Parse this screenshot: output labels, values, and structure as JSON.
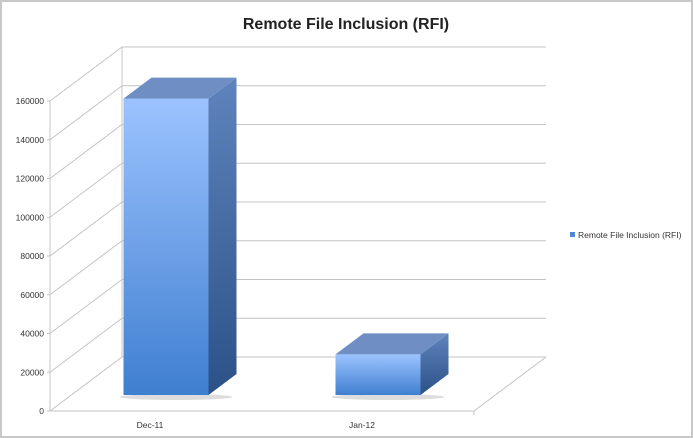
{
  "chart_data": {
    "type": "bar",
    "style": "3d-column",
    "title": "Remote File Inclusion (RFI)",
    "categories": [
      "Dec-11",
      "Jan-12"
    ],
    "series": [
      {
        "name": "Remote File Inclusion (RFI)",
        "values": [
          153000,
          21000
        ],
        "color": "#5b8fd9"
      }
    ],
    "yticks": [
      0,
      20000,
      40000,
      60000,
      80000,
      100000,
      120000,
      140000,
      160000
    ],
    "ylim": [
      0,
      160000
    ],
    "xlabel": "",
    "ylabel": "",
    "grid": true,
    "legend": "right"
  }
}
